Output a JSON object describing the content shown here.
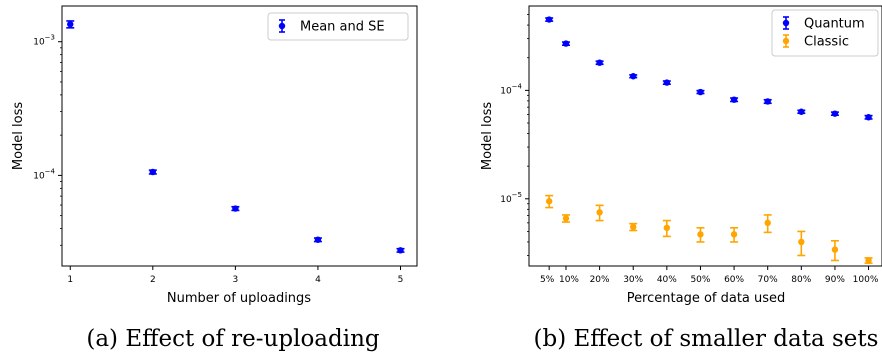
{
  "chart_data": [
    {
      "type": "scatter",
      "caption": "(a) Effect of re-uploading",
      "xlabel": "Number of uploadings",
      "ylabel": "Model loss",
      "yscale": "log",
      "xlim": [
        0.9,
        5.2
      ],
      "ylim": [
        2.1e-05,
        0.00185
      ],
      "x_ticks": [
        "1",
        "2",
        "3",
        "4",
        "5"
      ],
      "y_ticks": [
        {
          "value": 0.001,
          "label": "10",
          "exp": "−3"
        },
        {
          "value": 0.0001,
          "label": "10",
          "exp": "−4"
        }
      ],
      "legend": {
        "placement": "upper right",
        "frame": true
      },
      "series": [
        {
          "name": "Mean and SE",
          "color": "#0000ff",
          "x": [
            1,
            2,
            3,
            4,
            5
          ],
          "y": [
            0.00135,
            0.000106,
            5.65e-05,
            3.3e-05,
            2.75e-05
          ],
          "err": [
            8e-05,
            3.5e-06,
            1.8e-06,
            1e-06,
            8e-07
          ]
        }
      ],
      "grid": false
    },
    {
      "type": "scatter",
      "caption": "(b) Effect of smaller data sets",
      "xlabel": "Percentage of data used",
      "ylabel": "Model loss",
      "yscale": "log",
      "ylim": [
        2.4e-06,
        0.0006
      ],
      "categories": [
        "5%",
        "10%",
        "20%",
        "30%",
        "40%",
        "50%",
        "60%",
        "70%",
        "80%",
        "90%",
        "100%"
      ],
      "x": [
        5,
        10,
        20,
        30,
        40,
        50,
        60,
        70,
        80,
        90,
        100
      ],
      "xlim": [
        -1,
        104
      ],
      "y_ticks": [
        {
          "value": 0.0001,
          "label": "10",
          "exp": "−4"
        },
        {
          "value": 1e-05,
          "label": "10",
          "exp": "−5"
        }
      ],
      "legend": {
        "placement": "upper right",
        "frame": true
      },
      "series": [
        {
          "name": "Quantum",
          "color": "#0000ff",
          "y": [
            0.00045,
            0.00027,
            0.00018,
            0.000135,
            0.000118,
            9.65e-05,
            8.2e-05,
            7.9e-05,
            6.35e-05,
            6.1e-05,
            5.65e-05
          ],
          "err": [
            1.5e-05,
            9e-06,
            6e-06,
            4e-06,
            4e-06,
            3e-06,
            3e-06,
            3e-06,
            2e-06,
            2e-06,
            2e-06
          ]
        },
        {
          "name": "Classic",
          "color": "#ffa500",
          "y": [
            9.5e-06,
            6.6e-06,
            7.5e-06,
            5.5e-06,
            5.4e-06,
            4.7e-06,
            4.7e-06,
            6e-06,
            4e-06,
            3.4e-06,
            2.7e-06
          ],
          "err": [
            1.2e-06,
            5e-07,
            1.2e-06,
            4e-07,
            9e-07,
            7e-07,
            7e-07,
            1.1e-06,
            1e-06,
            7e-07,
            1.5e-07
          ]
        }
      ],
      "grid": false
    }
  ]
}
